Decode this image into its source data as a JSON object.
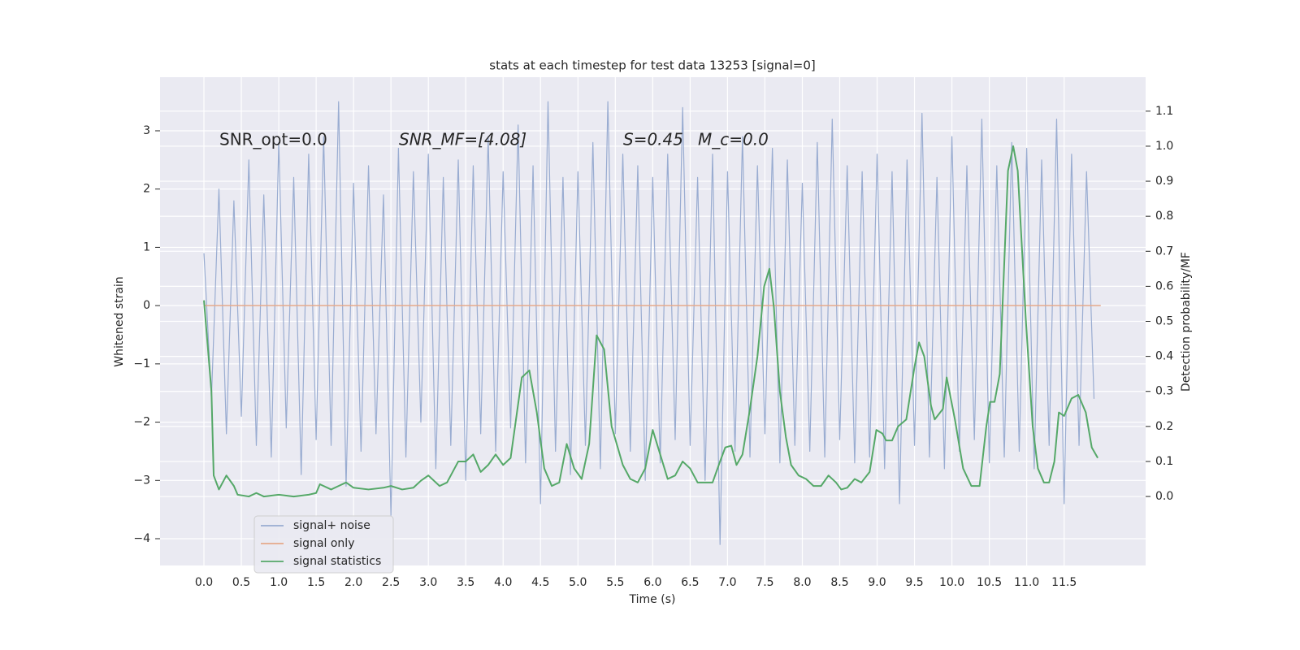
{
  "chart_data": {
    "type": "line",
    "title": "stats at each timestep for test data 13253 [signal=0]",
    "xlabel": "Time (s)",
    "ylabel": "Whitened strain",
    "y2label": "Detection probability/MF",
    "annotations": [
      "SNR_opt=0.0",
      "SNR_MF=[4.08]",
      "S=0.45",
      "M_c=0.0"
    ],
    "grid": true,
    "legend": "lower left",
    "xlim": [
      -0.587,
      12.59
    ],
    "ylim": [
      -4.46,
      3.92
    ],
    "y2lim": [
      -0.197,
      1.197
    ],
    "xticks": [
      {
        "value": 0,
        "label": "0.0"
      },
      {
        "value": 0.5,
        "label": "0.5"
      },
      {
        "value": 1,
        "label": "1.0"
      },
      {
        "value": 1.5,
        "label": "1.5"
      },
      {
        "value": 2,
        "label": "2.0"
      },
      {
        "value": 2.5,
        "label": "2.5"
      },
      {
        "value": 3,
        "label": "3.0"
      },
      {
        "value": 3.5,
        "label": "3.5"
      },
      {
        "value": 4,
        "label": "4.0"
      },
      {
        "value": 4.5,
        "label": "4.5"
      },
      {
        "value": 5,
        "label": "5.0"
      },
      {
        "value": 5.5,
        "label": "5.5"
      },
      {
        "value": 6,
        "label": "6.0"
      },
      {
        "value": 6.5,
        "label": "6.5"
      },
      {
        "value": 7,
        "label": "7.0"
      },
      {
        "value": 7.5,
        "label": "7.5"
      },
      {
        "value": 8,
        "label": "8.0"
      },
      {
        "value": 8.5,
        "label": "8.5"
      },
      {
        "value": 9,
        "label": "9.0"
      },
      {
        "value": 9.5,
        "label": "9.5"
      },
      {
        "value": 10,
        "label": "10.0"
      },
      {
        "value": 10.5,
        "label": "10.5"
      },
      {
        "value": 11,
        "label": "11.0"
      },
      {
        "value": 11.5,
        "label": "11.5"
      }
    ],
    "yticks": [
      {
        "value": -4,
        "label": "−4"
      },
      {
        "value": -3,
        "label": "−3"
      },
      {
        "value": -2,
        "label": "−2"
      },
      {
        "value": -1,
        "label": "−1"
      },
      0,
      1,
      2,
      3
    ],
    "y2ticks": [
      {
        "value": 0,
        "label": "0.0"
      },
      {
        "value": 0.1,
        "label": "0.1"
      },
      {
        "value": 0.2,
        "label": "0.2"
      },
      {
        "value": 0.3,
        "label": "0.3"
      },
      {
        "value": 0.4,
        "label": "0.4"
      },
      {
        "value": 0.5,
        "label": "0.5"
      },
      {
        "value": 0.6,
        "label": "0.6"
      },
      {
        "value": 0.7,
        "label": "0.7"
      },
      {
        "value": 0.8,
        "label": "0.8"
      },
      {
        "value": 0.9,
        "label": "0.9"
      },
      {
        "value": 1,
        "label": "1.0"
      },
      {
        "value": 1.1,
        "label": "1.1"
      }
    ],
    "series": [
      {
        "name": "signal+ noise",
        "color": "#99acd1",
        "x": [
          0,
          0.1,
          0.2,
          0.3,
          0.4,
          0.5,
          0.6,
          0.7,
          0.8,
          0.9,
          1,
          1.1,
          1.2,
          1.3,
          1.4,
          1.5,
          1.6,
          1.7,
          1.8,
          1.9,
          2,
          2.1,
          2.2,
          2.3,
          2.4,
          2.5,
          2.6,
          2.7,
          2.8,
          2.9,
          3,
          3.1,
          3.2,
          3.3,
          3.4,
          3.5,
          3.6,
          3.7,
          3.8,
          3.9,
          4,
          4.1,
          4.2,
          4.3,
          4.4,
          4.5,
          4.6,
          4.7,
          4.8,
          4.9,
          5,
          5.1,
          5.2,
          5.3,
          5.4,
          5.5,
          5.6,
          5.7,
          5.8,
          5.9,
          6,
          6.1,
          6.2,
          6.3,
          6.4,
          6.5,
          6.6,
          6.7,
          6.8,
          6.9,
          7,
          7.1,
          7.2,
          7.3,
          7.4,
          7.5,
          7.6,
          7.7,
          7.8,
          7.9,
          8,
          8.1,
          8.2,
          8.3,
          8.4,
          8.5,
          8.6,
          8.7,
          8.8,
          8.9,
          9,
          9.1,
          9.2,
          9.3,
          9.4,
          9.5,
          9.6,
          9.7,
          9.8,
          9.9,
          10,
          10.1,
          10.2,
          10.3,
          10.4,
          10.5,
          10.6,
          10.7,
          10.8,
          10.9,
          11,
          11.1,
          11.2,
          11.3,
          11.4,
          11.5,
          11.6,
          11.7,
          11.8,
          11.9
        ],
        "values": [
          0.9,
          -1.6,
          2.0,
          -2.2,
          1.8,
          -1.9,
          2.5,
          -2.4,
          1.9,
          -2.6,
          2.8,
          -2.1,
          2.2,
          -2.9,
          2.6,
          -2.3,
          2.9,
          -2.4,
          3.5,
          -3.1,
          2.1,
          -2.5,
          2.4,
          -2.2,
          1.9,
          -3.6,
          2.7,
          -2.6,
          2.3,
          -2.0,
          2.6,
          -2.8,
          2.2,
          -2.4,
          2.5,
          -3.0,
          2.4,
          -2.2,
          2.9,
          -2.5,
          2.3,
          -2.1,
          3.1,
          -2.7,
          2.4,
          -3.4,
          3.5,
          -2.5,
          2.2,
          -2.9,
          2.3,
          -2.4,
          2.8,
          -2.8,
          3.5,
          -2.2,
          2.6,
          -2.5,
          2.4,
          -3.0,
          2.2,
          -2.7,
          2.6,
          -2.3,
          3.4,
          -2.4,
          2.2,
          -3.0,
          2.6,
          -4.1,
          2.3,
          -2.5,
          2.9,
          -2.6,
          2.4,
          -2.2,
          2.7,
          -2.7,
          2.5,
          -2.4,
          2.1,
          -2.5,
          2.8,
          -2.6,
          3.2,
          -2.3,
          2.4,
          -2.7,
          2.3,
          -2.6,
          2.6,
          -2.8,
          2.3,
          -3.4,
          2.5,
          -2.4,
          3.3,
          -2.6,
          2.2,
          -2.8,
          2.9,
          -2.5,
          2.4,
          -2.3,
          3.2,
          -2.7,
          2.4,
          -2.6,
          2.8,
          -2.5,
          2.7,
          -2.8,
          2.5,
          -2.4,
          3.2,
          -3.4,
          2.6,
          -2.4,
          2.3,
          -1.6
        ]
      },
      {
        "name": "signal only",
        "color": "#e5a98a",
        "x": [
          0,
          11.99
        ],
        "values": [
          0,
          0
        ]
      },
      {
        "name": "signal statistics",
        "color": "#55a868",
        "axis": "y2",
        "x": [
          0,
          0.1,
          0.13,
          0.2,
          0.3,
          0.4,
          0.45,
          0.6,
          0.7,
          0.8,
          1,
          1.2,
          1.4,
          1.5,
          1.55,
          1.7,
          1.8,
          1.9,
          2,
          2.2,
          2.4,
          2.5,
          2.65,
          2.8,
          2.9,
          3,
          3.15,
          3.25,
          3.4,
          3.5,
          3.6,
          3.7,
          3.8,
          3.9,
          4,
          4.1,
          4.25,
          4.35,
          4.45,
          4.55,
          4.65,
          4.75,
          4.85,
          4.95,
          5.05,
          5.15,
          5.25,
          5.35,
          5.45,
          5.6,
          5.7,
          5.8,
          5.9,
          6,
          6.1,
          6.2,
          6.3,
          6.4,
          6.5,
          6.6,
          6.8,
          6.9,
          6.97,
          7.05,
          7.12,
          7.2,
          7.3,
          7.4,
          7.49,
          7.56,
          7.62,
          7.7,
          7.78,
          7.85,
          7.95,
          8.05,
          8.15,
          8.25,
          8.35,
          8.45,
          8.52,
          8.6,
          8.7,
          8.79,
          8.9,
          8.99,
          9.07,
          9.12,
          9.2,
          9.28,
          9.39,
          9.5,
          9.56,
          9.63,
          9.72,
          9.77,
          9.88,
          9.93,
          10.04,
          10.15,
          10.26,
          10.37,
          10.46,
          10.51,
          10.57,
          10.64,
          10.75,
          10.82,
          10.88,
          10.99,
          11.08,
          11.15,
          11.23,
          11.3,
          11.37,
          11.43,
          11.5,
          11.6,
          11.69,
          11.79,
          11.87,
          11.95
        ],
        "values": [
          0.56,
          0.3,
          0.06,
          0.02,
          0.06,
          0.03,
          0.005,
          0,
          0.01,
          0,
          0.005,
          0,
          0.005,
          0.01,
          0.035,
          0.02,
          0.03,
          0.04,
          0.025,
          0.02,
          0.025,
          0.03,
          0.02,
          0.025,
          0.045,
          0.06,
          0.03,
          0.04,
          0.1,
          0.1,
          0.12,
          0.07,
          0.09,
          0.12,
          0.09,
          0.11,
          0.34,
          0.36,
          0.24,
          0.08,
          0.03,
          0.04,
          0.15,
          0.08,
          0.05,
          0.15,
          0.46,
          0.42,
          0.2,
          0.09,
          0.05,
          0.04,
          0.08,
          0.19,
          0.12,
          0.05,
          0.06,
          0.1,
          0.08,
          0.04,
          0.04,
          0.1,
          0.14,
          0.145,
          0.09,
          0.12,
          0.25,
          0.4,
          0.6,
          0.65,
          0.54,
          0.3,
          0.17,
          0.09,
          0.06,
          0.05,
          0.03,
          0.03,
          0.06,
          0.04,
          0.02,
          0.025,
          0.05,
          0.04,
          0.07,
          0.19,
          0.18,
          0.16,
          0.16,
          0.2,
          0.22,
          0.37,
          0.44,
          0.4,
          0.26,
          0.22,
          0.25,
          0.34,
          0.22,
          0.08,
          0.03,
          0.03,
          0.2,
          0.27,
          0.27,
          0.35,
          0.93,
          1.0,
          0.93,
          0.5,
          0.2,
          0.08,
          0.04,
          0.04,
          0.1,
          0.24,
          0.23,
          0.28,
          0.29,
          0.24,
          0.14,
          0.11
        ]
      }
    ]
  }
}
